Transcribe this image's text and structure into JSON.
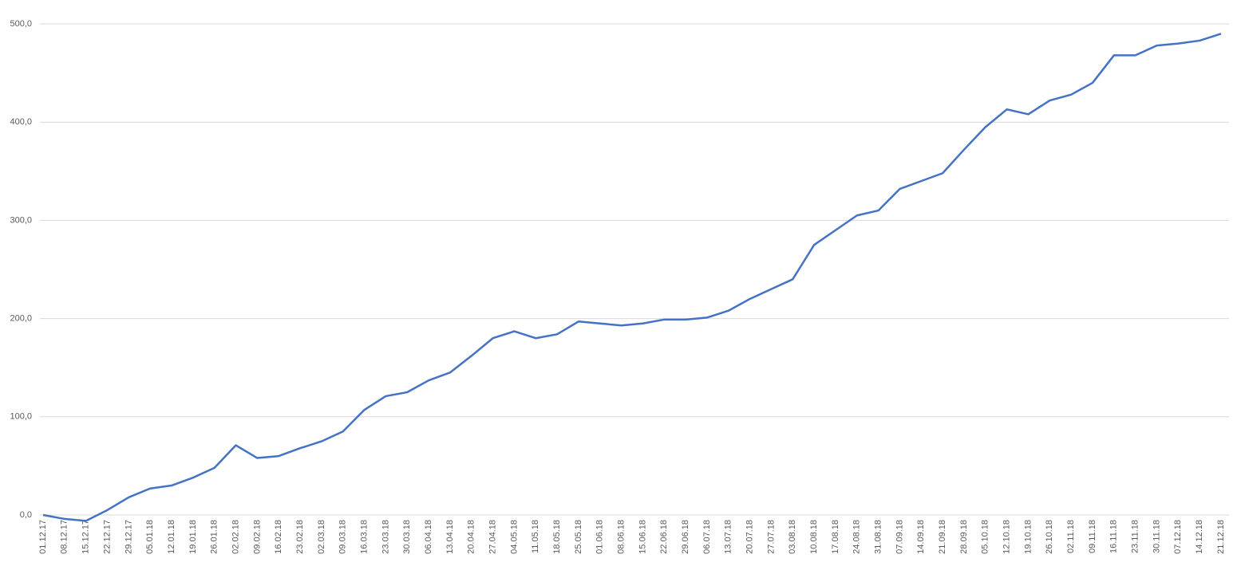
{
  "chart_data": {
    "type": "line",
    "categories": [
      "01.12.17",
      "08.12.17",
      "15.12.17",
      "22.12.17",
      "29.12.17",
      "05.01.18",
      "12.01.18",
      "19.01.18",
      "26.01.18",
      "02.02.18",
      "09.02.18",
      "16.02.18",
      "23.02.18",
      "02.03.18",
      "09.03.18",
      "16.03.18",
      "23.03.18",
      "30.03.18",
      "06.04.18",
      "13.04.18",
      "20.04.18",
      "27.04.18",
      "04.05.18",
      "11.05.18",
      "18.05.18",
      "25.05.18",
      "01.06.18",
      "08.06.18",
      "15.06.18",
      "22.06.18",
      "29.06.18",
      "06.07.18",
      "13.07.18",
      "20.07.18",
      "27.07.18",
      "03.08.18",
      "10.08.18",
      "17.08.18",
      "24.08.18",
      "31.08.18",
      "07.09.18",
      "14.09.18",
      "21.09.18",
      "28.09.18",
      "05.10.18",
      "12.10.18",
      "19.10.18",
      "26.10.18",
      "02.11.18",
      "09.11.18",
      "16.11.18",
      "23.11.18",
      "30.11.18",
      "07.12.18",
      "14.12.18",
      "21.12.18"
    ],
    "values": [
      0,
      -4,
      -6,
      5,
      18,
      27,
      30,
      38,
      48,
      71,
      58,
      60,
      68,
      75,
      85,
      107,
      121,
      125,
      137,
      145,
      162,
      180,
      187,
      180,
      184,
      197,
      195,
      193,
      195,
      199,
      199,
      201,
      208,
      220,
      230,
      240,
      275,
      290,
      305,
      310,
      332,
      340,
      348,
      372,
      395,
      413,
      408,
      422,
      428,
      440,
      468,
      468,
      478,
      480,
      483,
      490
    ],
    "color": "#4472c4",
    "ylim": [
      0,
      500
    ],
    "yticks": [
      {
        "value": 0,
        "label": "0,0"
      },
      {
        "value": 100,
        "label": "100,0"
      },
      {
        "value": 200,
        "label": "200,0"
      },
      {
        "value": 300,
        "label": "300,0"
      },
      {
        "value": 400,
        "label": "400,0"
      },
      {
        "value": 500,
        "label": "500,0"
      }
    ],
    "grid": true
  }
}
